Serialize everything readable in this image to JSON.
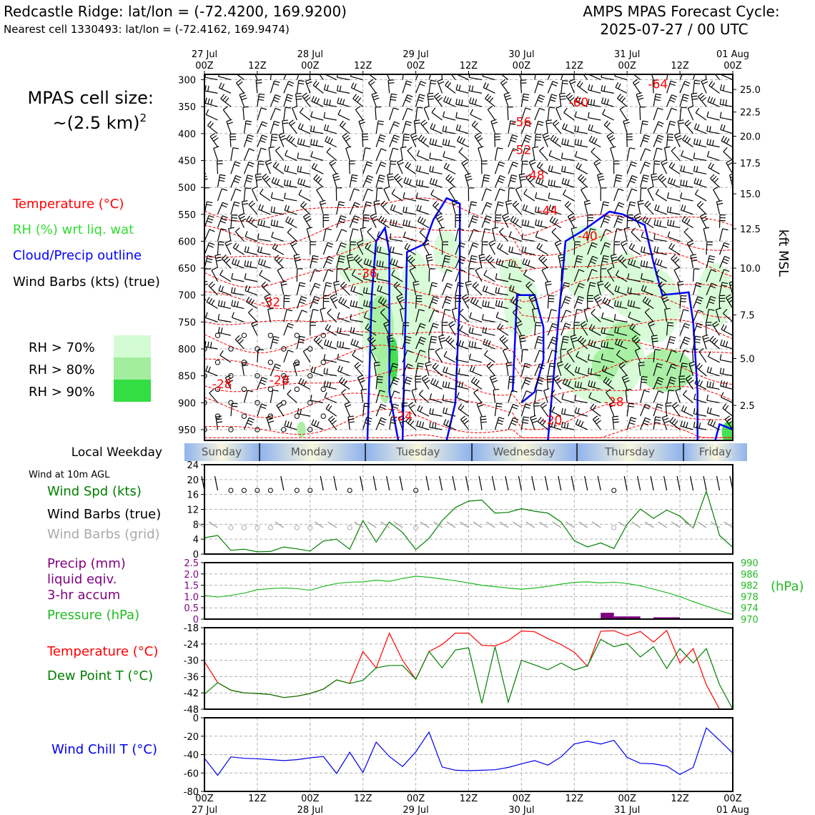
{
  "header": {
    "title_left": "Redcastle Ridge: lat/lon = (-72.4200, 169.9200)",
    "subtitle_left": "Nearest cell 1330493: lat/lon = (-72.4162, 169.9474)",
    "title_right_1": "AMPS MPAS Forecast Cycle:",
    "title_right_2": "2025-07-27 / 00 UTC"
  },
  "cell_size": {
    "line1": "MPAS cell size:",
    "line2": "~(2.5 km)",
    "sup": "2"
  },
  "legend": {
    "temperature": "Temperature (°C)",
    "rh": "RH (%) wrt liq. wat",
    "cloud": "Cloud/Precip outline",
    "wind": "Wind Barbs (kts) (true)",
    "rh70": "RH > 70%",
    "rh80": "RH > 80%",
    "rh90": "RH > 90%"
  },
  "colors": {
    "temperature": "#ff0000",
    "rh_text": "#33dd33",
    "cloud": "#0000ff",
    "rh70": "#d4fcd4",
    "rh80": "#a3ee9e",
    "rh90": "#33dd44",
    "dewpoint": "#007f00",
    "pressure": "#22bb22",
    "precip": "#7f007f",
    "windchill": "#0000ee",
    "gridbarb": "#aaaaaa"
  },
  "time_axis": {
    "top": [
      {
        "d": "27 Jul",
        "h": "00Z"
      },
      {
        "d": "",
        "h": "12Z"
      },
      {
        "d": "28 Jul",
        "h": "00Z"
      },
      {
        "d": "",
        "h": "12Z"
      },
      {
        "d": "29 Jul",
        "h": "00Z"
      },
      {
        "d": "",
        "h": "12Z"
      },
      {
        "d": "30 Jul",
        "h": "00Z"
      },
      {
        "d": "",
        "h": "12Z"
      },
      {
        "d": "31 Jul",
        "h": "00Z"
      },
      {
        "d": "",
        "h": "12Z"
      },
      {
        "d": "01 Aug",
        "h": "00Z"
      }
    ],
    "bottom": [
      {
        "h": "00Z",
        "d": "27 Jul"
      },
      {
        "h": "12Z",
        "d": ""
      },
      {
        "h": "00Z",
        "d": "28 Jul"
      },
      {
        "h": "12Z",
        "d": ""
      },
      {
        "h": "00Z",
        "d": "29 Jul"
      },
      {
        "h": "12Z",
        "d": ""
      },
      {
        "h": "00Z",
        "d": "30 Jul"
      },
      {
        "h": "12Z",
        "d": ""
      },
      {
        "h": "00Z",
        "d": "31 Jul"
      },
      {
        "h": "12Z",
        "d": ""
      },
      {
        "h": "00Z",
        "d": "01 Aug"
      }
    ]
  },
  "weekday": {
    "label": "Local Weekday",
    "days": [
      "Sunday",
      "Monday",
      "Tuesday",
      "Wednesday",
      "Thursday",
      "Friday"
    ]
  },
  "chart_data": [
    {
      "type": "heatmap",
      "name": "upper-air cross section",
      "x_range_hours": [
        0,
        120
      ],
      "y_axis_left": {
        "label": "",
        "ticks": [
          300,
          350,
          400,
          450,
          500,
          550,
          600,
          650,
          700,
          750,
          800,
          850,
          900,
          950
        ],
        "range_hpa": [
          290,
          970
        ]
      },
      "y_axis_right": {
        "label": "kft MSL",
        "ticks": [
          "25.0",
          "22.5",
          "20.0",
          "17.5",
          "15.0",
          "12.5",
          "10.0",
          "7.5",
          "5.0",
          "2.5"
        ],
        "pressures": [
          318,
          360,
          405,
          455,
          512,
          577,
          650,
          737,
          818,
          905
        ]
      },
      "temperature_labels": [
        {
          "t": "-64",
          "h": 103,
          "p": 308
        },
        {
          "t": "-60",
          "h": 85,
          "p": 342
        },
        {
          "t": "-56",
          "h": 72,
          "p": 378
        },
        {
          "t": "-52",
          "h": 72,
          "p": 430
        },
        {
          "t": "-48",
          "h": 75,
          "p": 477
        },
        {
          "t": "-44",
          "h": 78,
          "p": 543
        },
        {
          "t": "-40",
          "h": 87,
          "p": 590
        },
        {
          "t": "-36",
          "h": 37,
          "p": 659
        },
        {
          "t": "-32",
          "h": 15,
          "p": 713
        },
        {
          "t": "-28",
          "h": 4,
          "p": 865
        },
        {
          "t": "-28",
          "h": 17,
          "p": 858
        },
        {
          "t": "-28",
          "h": 93,
          "p": 898
        },
        {
          "t": "-24",
          "h": 45,
          "p": 925
        },
        {
          "t": "-20",
          "h": 79,
          "p": 932
        }
      ]
    },
    {
      "type": "line",
      "name": "wind speed at 10m",
      "title": "Wind at 10m AGL",
      "label_speed": "Wind Spd (kts)",
      "label_barbs_true": "Wind Barbs (true)",
      "label_barbs_grid": "Wind Barbs (grid)",
      "yticks": [
        "24",
        "20",
        "16",
        "12",
        "8",
        "4",
        "0"
      ],
      "ylim": [
        0,
        24
      ],
      "x_hours": [
        0,
        3,
        6,
        9,
        12,
        15,
        18,
        21,
        24,
        27,
        30,
        33,
        36,
        39,
        42,
        45,
        48,
        51,
        54,
        57,
        60,
        63,
        66,
        69,
        72,
        75,
        78,
        81,
        84,
        87,
        90,
        93,
        96,
        99,
        102,
        105,
        108,
        111,
        114,
        117,
        120
      ],
      "values": [
        4.4,
        5.0,
        1.0,
        1.3,
        0.6,
        0.7,
        1.9,
        1.4,
        0.8,
        3.5,
        4.0,
        1.3,
        9.0,
        3.2,
        8.6,
        5.8,
        1.2,
        4.2,
        9.0,
        12.5,
        14.2,
        14.5,
        11.0,
        11.2,
        12.2,
        11.5,
        11.0,
        8.6,
        3.6,
        1.9,
        3.0,
        1.5,
        8.0,
        12.1,
        9.6,
        11.8,
        10.2,
        7.0,
        16.9,
        5.0,
        1.8
      ]
    },
    {
      "type": "line",
      "name": "precip and pressure",
      "label_precip": "Precip (mm)\nliquid eqiv.\n3-hr accum",
      "label_precip_lines": [
        "Precip (mm)",
        "liquid eqiv.",
        "3-hr accum"
      ],
      "label_pressure": "Pressure (hPa)",
      "right_unit": "(hPa)",
      "precip_ticks": [
        "2.5",
        "2.0",
        "1.5",
        "1.0",
        "0.5",
        "0"
      ],
      "precip_ylim": [
        0,
        2.5
      ],
      "pressure_ticks": [
        "990",
        "986",
        "982",
        "978",
        "974",
        "970"
      ],
      "pressure_ylim": [
        970,
        990
      ],
      "x_hours": [
        0,
        3,
        6,
        9,
        12,
        15,
        18,
        21,
        24,
        27,
        30,
        33,
        36,
        39,
        42,
        45,
        48,
        51,
        54,
        57,
        60,
        63,
        66,
        69,
        72,
        75,
        78,
        81,
        84,
        87,
        90,
        93,
        96,
        99,
        102,
        105,
        108,
        111,
        114,
        117,
        120
      ],
      "pressure": [
        978.4,
        977.8,
        978.4,
        979.2,
        980.4,
        980.8,
        981.0,
        980.8,
        980.2,
        981.6,
        982.6,
        983.1,
        983.2,
        983.8,
        983.4,
        984.4,
        985.2,
        984.8,
        984.2,
        983.6,
        982.8,
        982.0,
        981.5,
        981.0,
        980.6,
        981.0,
        981.6,
        982.4,
        983.0,
        983.2,
        982.8,
        983.1,
        982.6,
        981.8,
        980.6,
        979.4,
        978.0,
        976.2,
        974.6,
        973.0,
        971.6
      ],
      "precip_bars": [
        {
          "h": 91.5,
          "v": 0.28
        },
        {
          "h": 94.5,
          "v": 0.12
        },
        {
          "h": 97.5,
          "v": 0.12
        },
        {
          "h": 103.5,
          "v": 0.08
        },
        {
          "h": 106.5,
          "v": 0.08
        }
      ]
    },
    {
      "type": "line",
      "name": "temperature and dew point",
      "label_temp": "Temperature (°C)",
      "label_dew": "Dew Point T (°C)",
      "yticks": [
        "-18",
        "-24",
        "-30",
        "-36",
        "-42",
        "-48"
      ],
      "ylim": [
        -48,
        -18
      ],
      "x_hours": [
        0,
        3,
        6,
        9,
        12,
        15,
        18,
        21,
        24,
        27,
        30,
        33,
        36,
        39,
        42,
        45,
        48,
        51,
        54,
        57,
        60,
        63,
        66,
        69,
        72,
        75,
        78,
        81,
        84,
        87,
        90,
        93,
        96,
        99,
        102,
        105,
        108,
        111,
        114,
        117,
        120
      ],
      "temperature": [
        -30.5,
        -38.2,
        -41.0,
        -42.0,
        -42.2,
        -42.6,
        -43.7,
        -43.2,
        -42.2,
        -40.6,
        -37.2,
        -38.5,
        -26.8,
        -32.8,
        -20.0,
        -30.0,
        -37.0,
        -26.8,
        -24.2,
        -20.0,
        -20.0,
        -24.5,
        -24.7,
        -22.8,
        -19.2,
        -19.5,
        -22.0,
        -24.2,
        -27.0,
        -32.2,
        -19.3,
        -19.1,
        -21.0,
        -19.4,
        -23.3,
        -19.0,
        -31.0,
        -25.7,
        -39.0,
        -48.0,
        -48.0
      ],
      "dewpoint": [
        -42.5,
        -38.2,
        -41.0,
        -42.0,
        -42.2,
        -42.6,
        -43.7,
        -43.2,
        -42.2,
        -40.6,
        -37.2,
        -38.5,
        -37.4,
        -32.8,
        -31.9,
        -31.9,
        -37.0,
        -26.8,
        -32.8,
        -26.2,
        -25.4,
        -45.8,
        -25.0,
        -45.4,
        -30.0,
        -31.7,
        -33.5,
        -31.0,
        -33.6,
        -32.0,
        -22.3,
        -25.0,
        -23.8,
        -28.8,
        -25.0,
        -33.0,
        -25.7,
        -31.0,
        -25.7,
        -39.0,
        -48.0
      ]
    },
    {
      "type": "line",
      "name": "wind chill",
      "label": "Wind Chill T (°C)",
      "yticks": [
        "0",
        "-20",
        "-40",
        "-60",
        "-80"
      ],
      "ylim": [
        -80,
        0
      ],
      "x_hours": [
        0,
        3,
        6,
        9,
        12,
        15,
        18,
        21,
        24,
        27,
        30,
        33,
        36,
        39,
        42,
        45,
        48,
        51,
        54,
        57,
        60,
        63,
        66,
        69,
        72,
        75,
        78,
        81,
        84,
        87,
        90,
        93,
        96,
        99,
        102,
        105,
        108,
        111,
        114,
        117,
        120
      ],
      "values": [
        -44.0,
        -62.5,
        -42.5,
        -44.0,
        -44.5,
        -45.5,
        -46.5,
        -45.5,
        -43.5,
        -42.0,
        -60.5,
        -37.5,
        -59.5,
        -26.5,
        -42.0,
        -53.0,
        -37.0,
        -15.5,
        -53.5,
        -57.0,
        -57.5,
        -57.0,
        -56.5,
        -54.0,
        -50.0,
        -46.5,
        -51.5,
        -42.5,
        -28.5,
        -25.5,
        -28.5,
        -24.5,
        -43.0,
        -49.5,
        -50.0,
        -52.5,
        -61.5,
        -54.0,
        -11.0,
        -24.5,
        -38.5
      ]
    }
  ]
}
